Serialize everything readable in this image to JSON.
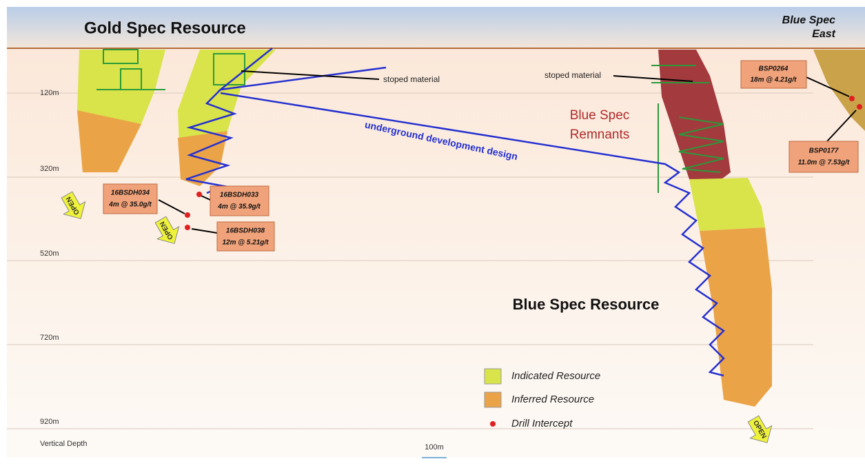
{
  "header": {
    "left_title": "Gold Spec Resource",
    "right_title": [
      "Blue Spec",
      "East"
    ]
  },
  "depth_axis": {
    "labels": [
      "120m",
      "320m",
      "520m",
      "720m",
      "920m"
    ],
    "caption": "Vertical Depth"
  },
  "scale_bar": "100m",
  "annotations": {
    "stoped_left": "stoped material",
    "stoped_right": "stoped material",
    "remnants": [
      "Blue Spec",
      "Remnants"
    ],
    "development": "underground development design",
    "blue_spec_resource": "Blue Spec Resource"
  },
  "drill_intercepts": [
    {
      "hole": "16BSDH034",
      "result": "4m @ 35.0g/t"
    },
    {
      "hole": "16BSDH033",
      "result": "4m @ 35.9g/t"
    },
    {
      "hole": "16BSDH038",
      "result": "12m @ 5.21g/t"
    },
    {
      "hole": "BSP0264",
      "result": "18m @ 4.21g/t"
    },
    {
      "hole": "BSP0177",
      "result": "11.0m @ 7.53g/t"
    }
  ],
  "open_markers": [
    "OPEN",
    "OPEN",
    "OPEN"
  ],
  "legend": [
    "Indicated Resource",
    "Inferred Resource",
    "Drill Intercept"
  ]
}
